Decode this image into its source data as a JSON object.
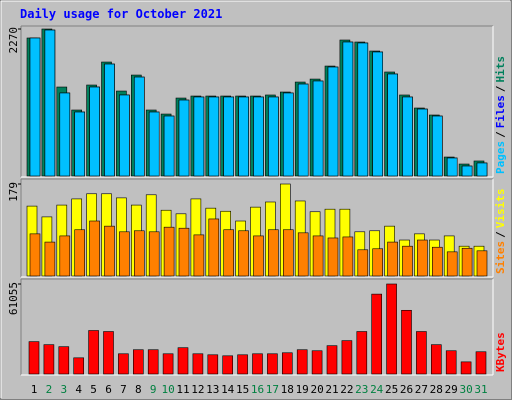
{
  "chart_data": [
    {
      "type": "bar",
      "title": "Daily usage for October 2021",
      "title_color": "#0000ff",
      "ylim": [
        0,
        2270
      ],
      "yticks": [
        2270
      ],
      "legend_separator": "/",
      "series": [
        {
          "name": "Hits",
          "color": "#00805c",
          "values": [
            2131,
            2270,
            1374,
            1019,
            1405,
            1760,
            1312,
            1559,
            1019,
            957,
            1204,
            1235,
            1235,
            1235,
            1235,
            1235,
            1251,
            1297,
            1451,
            1497,
            1698,
            2100,
            2069,
            1930,
            1606,
            1251,
            1050,
            942,
            293,
            185,
            232
          ]
        },
        {
          "name": "Files",
          "color": "#0000ff",
          "values": [
            2131,
            2254,
            1282,
            988,
            1374,
            1729,
            1251,
            1528,
            988,
            926,
            1173,
            1220,
            1220,
            1220,
            1220,
            1220,
            1220,
            1282,
            1420,
            1467,
            1683,
            2069,
            2054,
            1915,
            1575,
            1220,
            1034,
            926,
            278,
            154,
            201
          ]
        },
        {
          "name": "Pages",
          "color": "#00c0ff",
          "values": [
            2131,
            2254,
            1282,
            988,
            1374,
            1729,
            1251,
            1528,
            988,
            926,
            1173,
            1220,
            1220,
            1220,
            1220,
            1220,
            1220,
            1282,
            1420,
            1467,
            1683,
            2069,
            2054,
            1915,
            1575,
            1220,
            1034,
            926,
            278,
            154,
            201
          ]
        }
      ]
    },
    {
      "type": "bar",
      "ylim": [
        0,
        179
      ],
      "yticks": [
        179
      ],
      "legend_separator": "/",
      "series": [
        {
          "name": "Visits",
          "color": "#ffff00",
          "values": [
            136,
            115,
            138,
            150,
            160,
            160,
            152,
            138,
            158,
            128,
            121,
            150,
            132,
            126,
            107,
            134,
            144,
            179,
            146,
            125,
            130,
            130,
            86,
            88,
            97,
            70,
            82,
            70,
            78,
            58,
            58
          ]
        },
        {
          "name": "Sites",
          "color": "#ff8000",
          "values": [
            82,
            66,
            78,
            90,
            107,
            97,
            86,
            88,
            86,
            95,
            93,
            80,
            111,
            90,
            88,
            78,
            90,
            90,
            84,
            78,
            74,
            76,
            51,
            53,
            66,
            58,
            70,
            56,
            47,
            54,
            49
          ]
        }
      ]
    },
    {
      "type": "bar",
      "ylim": [
        0,
        61055
      ],
      "yticks": [
        61055
      ],
      "categories": [
        "1",
        "2",
        "3",
        "4",
        "5",
        "6",
        "7",
        "8",
        "9",
        "10",
        "11",
        "12",
        "13",
        "14",
        "15",
        "16",
        "17",
        "18",
        "19",
        "20",
        "21",
        "22",
        "23",
        "24",
        "25",
        "26",
        "27",
        "28",
        "29",
        "30",
        "31"
      ],
      "category_colors": [
        "#000000",
        "#008040",
        "#008040",
        "#000000",
        "#000000",
        "#000000",
        "#000000",
        "#000000",
        "#008040",
        "#008040",
        "#000000",
        "#000000",
        "#000000",
        "#000000",
        "#000000",
        "#008040",
        "#008040",
        "#000000",
        "#000000",
        "#000000",
        "#000000",
        "#000000",
        "#008040",
        "#008040",
        "#000000",
        "#000000",
        "#000000",
        "#000000",
        "#000000",
        "#008040",
        "#008040"
      ],
      "series": [
        {
          "name": "KBytes",
          "color": "#ff0000",
          "values": [
            21952,
            19894,
            18522,
            10976,
            29498,
            28812,
            13720,
            16464,
            16464,
            13720,
            17836,
            13720,
            13034,
            12348,
            13034,
            13720,
            13720,
            14406,
            16464,
            15778,
            19208,
            22638,
            28812,
            54194,
            61055,
            43218,
            28812,
            19894,
            15778,
            8232,
            15092
          ]
        }
      ]
    }
  ]
}
